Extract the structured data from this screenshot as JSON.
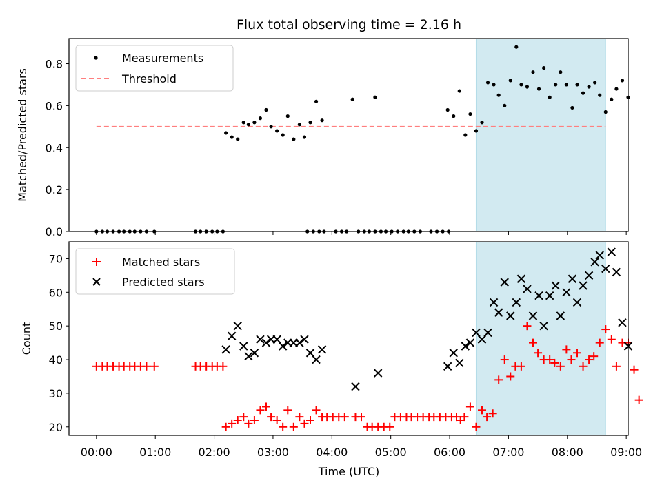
{
  "title": "Flux total observing time = 2.16 h",
  "xlabel": "Time (UTC)",
  "x_ticks": [
    "00:00",
    "01:00",
    "02:00",
    "03:00",
    "04:00",
    "05:00",
    "06:00",
    "07:00",
    "08:00",
    "09:00"
  ],
  "colors": {
    "measurements": "#000000",
    "threshold": "#ff7f7f",
    "matched": "#ff0000",
    "predicted": "#000000",
    "highlight": "#add8e6"
  },
  "chart_data": [
    {
      "type": "scatter",
      "ylabel": "Matched/Predicted stars",
      "xlim": [
        "-00:28",
        "09:02"
      ],
      "ylim": [
        0,
        0.92
      ],
      "y_ticks": [
        "0.0",
        "0.2",
        "0.4",
        "0.6",
        "0.8"
      ],
      "grid": false,
      "legend": "upper left",
      "highlight_span": [
        "06:27",
        "08:39"
      ],
      "threshold": {
        "name": "Threshold",
        "y": 0.5,
        "x": [
          "00:00",
          "08:39"
        ]
      },
      "series": [
        {
          "name": "Measurements",
          "points": [
            [
              "00:00",
              0
            ],
            [
              "00:06",
              0
            ],
            [
              "00:11",
              0
            ],
            [
              "00:17",
              0
            ],
            [
              "00:23",
              0
            ],
            [
              "00:28",
              0
            ],
            [
              "00:34",
              0
            ],
            [
              "00:39",
              0
            ],
            [
              "00:45",
              0
            ],
            [
              "00:51",
              0
            ],
            [
              "00:59",
              0
            ],
            [
              "01:41",
              0
            ],
            [
              "01:46",
              0
            ],
            [
              "01:52",
              0
            ],
            [
              "01:58",
              0
            ],
            [
              "02:03",
              0
            ],
            [
              "02:09",
              0
            ],
            [
              "02:12",
              0.47
            ],
            [
              "02:18",
              0.45
            ],
            [
              "02:24",
              0.44
            ],
            [
              "02:30",
              0.52
            ],
            [
              "02:35",
              0.51
            ],
            [
              "02:41",
              0.52
            ],
            [
              "02:47",
              0.54
            ],
            [
              "02:53",
              0.58
            ],
            [
              "02:58",
              0.5
            ],
            [
              "03:04",
              0.48
            ],
            [
              "03:10",
              0.46
            ],
            [
              "03:15",
              0.55
            ],
            [
              "03:21",
              0.44
            ],
            [
              "03:27",
              0.51
            ],
            [
              "03:32",
              0.45
            ],
            [
              "03:38",
              0.52
            ],
            [
              "03:44",
              0.62
            ],
            [
              "03:50",
              0.53
            ],
            [
              "03:35",
              0
            ],
            [
              "03:41",
              0
            ],
            [
              "03:47",
              0
            ],
            [
              "03:52",
              0
            ],
            [
              "04:04",
              0
            ],
            [
              "04:10",
              0
            ],
            [
              "04:15",
              0
            ],
            [
              "04:27",
              0
            ],
            [
              "04:33",
              0
            ],
            [
              "04:38",
              0
            ],
            [
              "04:44",
              0
            ],
            [
              "04:50",
              0
            ],
            [
              "04:55",
              0
            ],
            [
              "05:01",
              0
            ],
            [
              "05:07",
              0
            ],
            [
              "05:13",
              0
            ],
            [
              "05:18",
              0
            ],
            [
              "05:24",
              0
            ],
            [
              "05:30",
              0
            ],
            [
              "05:41",
              0
            ],
            [
              "05:47",
              0
            ],
            [
              "05:53",
              0
            ],
            [
              "05:59",
              0
            ],
            [
              "04:21",
              0.63
            ],
            [
              "04:44",
              0.64
            ],
            [
              "05:58",
              0.58
            ],
            [
              "06:04",
              0.55
            ],
            [
              "06:10",
              0.67
            ],
            [
              "06:16",
              0.46
            ],
            [
              "06:21",
              0.56
            ],
            [
              "06:27",
              0.48
            ],
            [
              "06:33",
              0.52
            ],
            [
              "06:39",
              0.71
            ],
            [
              "06:45",
              0.7
            ],
            [
              "06:50",
              0.65
            ],
            [
              "06:56",
              0.6
            ],
            [
              "07:02",
              0.72
            ],
            [
              "07:08",
              0.88
            ],
            [
              "07:13",
              0.7
            ],
            [
              "07:19",
              0.69
            ],
            [
              "07:25",
              0.76
            ],
            [
              "07:31",
              0.68
            ],
            [
              "07:36",
              0.78
            ],
            [
              "07:42",
              0.64
            ],
            [
              "07:48",
              0.7
            ],
            [
              "07:53",
              0.76
            ],
            [
              "07:59",
              0.7
            ],
            [
              "08:05",
              0.59
            ],
            [
              "08:10",
              0.7
            ],
            [
              "08:16",
              0.66
            ],
            [
              "08:22",
              0.69
            ],
            [
              "08:28",
              0.71
            ],
            [
              "08:33",
              0.65
            ],
            [
              "08:39",
              0.57
            ],
            [
              "08:45",
              0.63
            ],
            [
              "08:50",
              0.68
            ],
            [
              "08:56",
              0.72
            ],
            [
              "09:02",
              0.64
            ]
          ]
        }
      ]
    },
    {
      "type": "scatter",
      "ylabel": "Count",
      "xlim": [
        "-00:28",
        "09:02"
      ],
      "ylim": [
        17.5,
        75
      ],
      "y_ticks": [
        "20",
        "30",
        "40",
        "50",
        "60",
        "70"
      ],
      "grid": false,
      "legend": "upper left",
      "highlight_span": [
        "06:27",
        "08:39"
      ],
      "series": [
        {
          "name": "Matched stars",
          "marker": "+",
          "points": [
            [
              "00:00",
              38
            ],
            [
              "00:06",
              38
            ],
            [
              "00:11",
              38
            ],
            [
              "00:17",
              38
            ],
            [
              "00:23",
              38
            ],
            [
              "00:28",
              38
            ],
            [
              "00:34",
              38
            ],
            [
              "00:39",
              38
            ],
            [
              "00:45",
              38
            ],
            [
              "00:51",
              38
            ],
            [
              "00:59",
              38
            ],
            [
              "01:41",
              38
            ],
            [
              "01:46",
              38
            ],
            [
              "01:52",
              38
            ],
            [
              "01:58",
              38
            ],
            [
              "02:03",
              38
            ],
            [
              "02:09",
              38
            ],
            [
              "02:12",
              20
            ],
            [
              "02:18",
              21
            ],
            [
              "02:24",
              22
            ],
            [
              "02:30",
              23
            ],
            [
              "02:35",
              21
            ],
            [
              "02:41",
              22
            ],
            [
              "02:47",
              25
            ],
            [
              "02:53",
              26
            ],
            [
              "02:58",
              23
            ],
            [
              "03:04",
              22
            ],
            [
              "03:10",
              20
            ],
            [
              "03:15",
              25
            ],
            [
              "03:21",
              20
            ],
            [
              "03:27",
              23
            ],
            [
              "03:32",
              21
            ],
            [
              "03:38",
              22
            ],
            [
              "03:44",
              25
            ],
            [
              "03:50",
              23
            ],
            [
              "03:55",
              23
            ],
            [
              "04:01",
              23
            ],
            [
              "04:07",
              23
            ],
            [
              "04:13",
              23
            ],
            [
              "04:24",
              23
            ],
            [
              "04:30",
              23
            ],
            [
              "04:36",
              20
            ],
            [
              "04:41",
              20
            ],
            [
              "04:47",
              20
            ],
            [
              "04:53",
              20
            ],
            [
              "04:59",
              20
            ],
            [
              "05:04",
              23
            ],
            [
              "05:10",
              23
            ],
            [
              "05:16",
              23
            ],
            [
              "05:21",
              23
            ],
            [
              "05:27",
              23
            ],
            [
              "05:33",
              23
            ],
            [
              "05:39",
              23
            ],
            [
              "05:44",
              23
            ],
            [
              "05:50",
              23
            ],
            [
              "05:56",
              23
            ],
            [
              "06:02",
              23
            ],
            [
              "06:07",
              23
            ],
            [
              "06:11",
              22
            ],
            [
              "06:15",
              23
            ],
            [
              "06:21",
              26
            ],
            [
              "06:27",
              20
            ],
            [
              "06:33",
              25
            ],
            [
              "06:38",
              23
            ],
            [
              "06:44",
              24
            ],
            [
              "06:50",
              34
            ],
            [
              "06:56",
              40
            ],
            [
              "07:02",
              35
            ],
            [
              "07:07",
              38
            ],
            [
              "07:13",
              38
            ],
            [
              "07:19",
              50
            ],
            [
              "07:25",
              45
            ],
            [
              "07:30",
              42
            ],
            [
              "07:36",
              40
            ],
            [
              "07:42",
              40
            ],
            [
              "07:47",
              39
            ],
            [
              "07:53",
              38
            ],
            [
              "07:59",
              43
            ],
            [
              "08:04",
              40
            ],
            [
              "08:10",
              42
            ],
            [
              "08:16",
              38
            ],
            [
              "08:22",
              40
            ],
            [
              "08:27",
              41
            ],
            [
              "08:33",
              45
            ],
            [
              "08:39",
              49
            ],
            [
              "08:45",
              46
            ],
            [
              "08:50",
              38
            ],
            [
              "08:56",
              45
            ],
            [
              "09:02",
              45
            ],
            [
              "09:08",
              37
            ],
            [
              "09:13",
              28
            ]
          ]
        },
        {
          "name": "Predicted stars",
          "marker": "x",
          "points": [
            [
              "02:12",
              43
            ],
            [
              "02:18",
              47
            ],
            [
              "02:24",
              50
            ],
            [
              "02:30",
              44
            ],
            [
              "02:35",
              41
            ],
            [
              "02:41",
              42
            ],
            [
              "02:47",
              46
            ],
            [
              "02:53",
              45
            ],
            [
              "02:58",
              46
            ],
            [
              "03:04",
              46
            ],
            [
              "03:10",
              44
            ],
            [
              "03:15",
              45
            ],
            [
              "03:21",
              45
            ],
            [
              "03:27",
              45
            ],
            [
              "03:32",
              46
            ],
            [
              "03:38",
              42
            ],
            [
              "03:44",
              40
            ],
            [
              "03:50",
              43
            ],
            [
              "04:24",
              32
            ],
            [
              "04:47",
              36
            ],
            [
              "05:58",
              38
            ],
            [
              "06:04",
              42
            ],
            [
              "06:10",
              39
            ],
            [
              "06:16",
              44
            ],
            [
              "06:21",
              45
            ],
            [
              "06:27",
              48
            ],
            [
              "06:33",
              46
            ],
            [
              "06:39",
              48
            ],
            [
              "06:45",
              57
            ],
            [
              "06:50",
              54
            ],
            [
              "06:56",
              63
            ],
            [
              "07:02",
              53
            ],
            [
              "07:08",
              57
            ],
            [
              "07:13",
              64
            ],
            [
              "07:19",
              61
            ],
            [
              "07:25",
              53
            ],
            [
              "07:31",
              59
            ],
            [
              "07:36",
              50
            ],
            [
              "07:42",
              59
            ],
            [
              "07:48",
              62
            ],
            [
              "07:53",
              53
            ],
            [
              "07:59",
              60
            ],
            [
              "08:05",
              64
            ],
            [
              "08:10",
              57
            ],
            [
              "08:16",
              62
            ],
            [
              "08:22",
              65
            ],
            [
              "08:28",
              69
            ],
            [
              "08:33",
              71
            ],
            [
              "08:39",
              67
            ],
            [
              "08:45",
              72
            ],
            [
              "08:50",
              66
            ],
            [
              "08:56",
              51
            ],
            [
              "09:02",
              44
            ]
          ]
        }
      ]
    }
  ]
}
